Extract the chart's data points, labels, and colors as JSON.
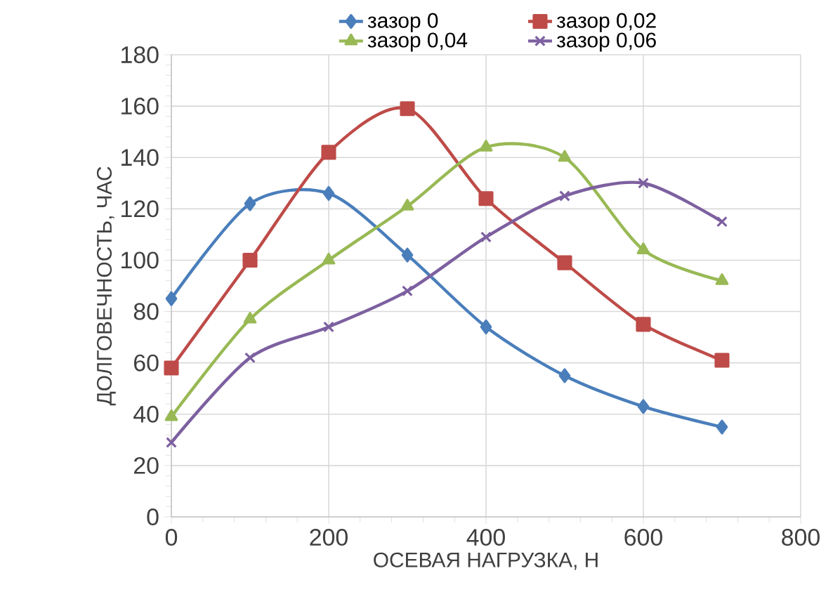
{
  "chart_data": {
    "type": "line",
    "xlabel": "ОСЕВАЯ НАГРУЗКА, Н",
    "ylabel": "ДОЛГОВЕЧНОСТЬ, ЧАС",
    "x": [
      0,
      100,
      200,
      300,
      400,
      500,
      600,
      700
    ],
    "series": [
      {
        "name": "зазор 0",
        "color": "#4a7ebb",
        "marker": "diamond",
        "values": [
          85,
          122,
          126,
          102,
          74,
          55,
          43,
          35
        ]
      },
      {
        "name": "зазор 0,02",
        "color": "#be4b48",
        "marker": "square",
        "values": [
          58,
          100,
          142,
          159,
          124,
          99,
          75,
          61
        ]
      },
      {
        "name": "зазор 0,04",
        "color": "#98b954",
        "marker": "triangle",
        "values": [
          39,
          77,
          100,
          121,
          144,
          140,
          104,
          92
        ]
      },
      {
        "name": "зазор 0,06",
        "color": "#7d60a0",
        "marker": "cross",
        "values": [
          29,
          62,
          74,
          88,
          109,
          125,
          130,
          115
        ]
      }
    ],
    "xlim": [
      0,
      800
    ],
    "xticks": [
      0,
      200,
      400,
      600,
      800
    ],
    "ylim": [
      0,
      180
    ],
    "yticks": [
      0,
      20,
      40,
      60,
      80,
      100,
      120,
      140,
      160,
      180
    ],
    "grid": true,
    "legend": "top",
    "line_style": "solid"
  }
}
